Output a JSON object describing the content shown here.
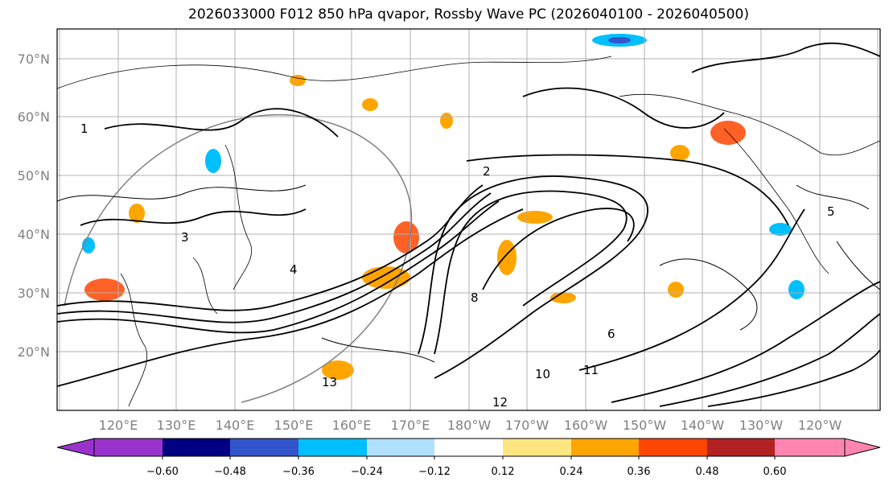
{
  "title": "2026033000 F012 850 hPa qvapor, Rossby Wave PC (2026040100 - 2026040500)",
  "map": {
    "lat_labels": [
      "70°N",
      "60°N",
      "50°N",
      "40°N",
      "30°N",
      "20°N"
    ],
    "lon_labels": [
      "120°E",
      "130°E",
      "140°E",
      "150°E",
      "160°E",
      "170°E",
      "180°W",
      "170°W",
      "160°W",
      "150°W",
      "140°W",
      "130°W",
      "120°W"
    ],
    "contour_labels": [
      "1",
      "2",
      "3",
      "4",
      "5",
      "6",
      "8",
      "10",
      "11",
      "12",
      "13"
    ],
    "coastline_color": "#000000",
    "grid_color": "#b0b0b0"
  },
  "colorbar": {
    "ticks": [
      "−0.60",
      "−0.48",
      "−0.36",
      "−0.24",
      "−0.12",
      "0.12",
      "0.24",
      "0.36",
      "0.48",
      "0.60"
    ],
    "colors": [
      "#9933cc",
      "#000080",
      "#3355cc",
      "#00bfff",
      "#b0e0ff",
      "#ffffff",
      "#ffe680",
      "#ffa500",
      "#ff4500",
      "#b22222",
      "#ff85b0",
      "#ff85b0"
    ],
    "extend": "both"
  }
}
